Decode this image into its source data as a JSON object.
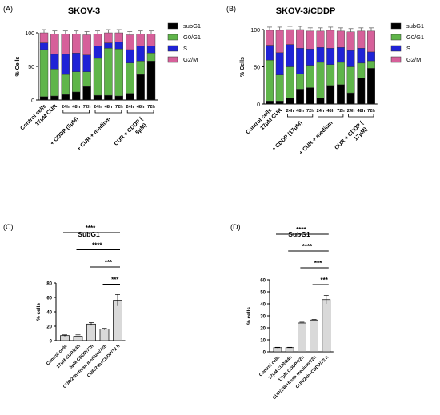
{
  "panels": {
    "A": {
      "label": "(A)"
    },
    "B": {
      "label": "(B)"
    },
    "C": {
      "label": "(C)"
    },
    "D": {
      "label": "(D)"
    }
  },
  "colors": {
    "subG1": "#000000",
    "G0G1": "#5fb54a",
    "S": "#1f22d6",
    "G2M": "#d6609a",
    "bar_gray": "#d9d9d9"
  },
  "chart_data": [
    {
      "id": "A",
      "type": "bar",
      "stacked": true,
      "title": "SKOV-3",
      "ylabel": "% Cells",
      "ylim": [
        0,
        100
      ],
      "yticks": [
        0,
        50,
        100
      ],
      "legend": [
        "subG1",
        "G0/G1",
        "S",
        "G2/M"
      ],
      "legend_position": "right",
      "time_labels": [
        "24h",
        "48h",
        "72h",
        "24h",
        "48h",
        "72h",
        "24h",
        "48h",
        "72h"
      ],
      "group_labels": [
        "Control cells",
        "17μM CUR",
        "+ CDDP (5μM)",
        "+ CUR + medium",
        "CUR + CDDP (5μM)"
      ],
      "bars": [
        {
          "subG1": 5,
          "G0G1": 70,
          "S": 10,
          "G2M": 15
        },
        {
          "subG1": 6,
          "G0G1": 40,
          "S": 22,
          "G2M": 30
        },
        {
          "subG1": 8,
          "G0G1": 30,
          "S": 30,
          "G2M": 30
        },
        {
          "subG1": 12,
          "G0G1": 30,
          "S": 28,
          "G2M": 28
        },
        {
          "subG1": 20,
          "G0G1": 22,
          "S": 25,
          "G2M": 30
        },
        {
          "subG1": 7,
          "G0G1": 55,
          "S": 18,
          "G2M": 18
        },
        {
          "subG1": 7,
          "G0G1": 70,
          "S": 8,
          "G2M": 15
        },
        {
          "subG1": 6,
          "G0G1": 70,
          "S": 10,
          "G2M": 14
        },
        {
          "subG1": 10,
          "G0G1": 45,
          "S": 20,
          "G2M": 22
        },
        {
          "subG1": 38,
          "G0G1": 20,
          "S": 22,
          "G2M": 18
        },
        {
          "subG1": 58,
          "G0G1": 12,
          "S": 10,
          "G2M": 18
        }
      ]
    },
    {
      "id": "B",
      "type": "bar",
      "stacked": true,
      "title": "SKOV-3/CDDP",
      "ylabel": "% Cells",
      "ylim": [
        0,
        100
      ],
      "yticks": [
        0,
        50,
        100
      ],
      "legend": [
        "subG1",
        "G0/G1",
        "S",
        "G2/M"
      ],
      "legend_position": "right",
      "time_labels": [
        "24h",
        "48h",
        "72h",
        "24h",
        "48h",
        "72h",
        "24h",
        "48h",
        "72h"
      ],
      "group_labels": [
        "Control cells",
        "17μM CUR",
        "+ CDDP (17μM)",
        "+ CUR + medium",
        "CUR + CDDP (17μM)"
      ],
      "bars": [
        {
          "subG1": 4,
          "G0G1": 55,
          "S": 20,
          "G2M": 20
        },
        {
          "subG1": 4,
          "G0G1": 35,
          "S": 30,
          "G2M": 30
        },
        {
          "subG1": 8,
          "G0G1": 42,
          "S": 30,
          "G2M": 20
        },
        {
          "subG1": 20,
          "G0G1": 20,
          "S": 35,
          "G2M": 25
        },
        {
          "subG1": 22,
          "G0G1": 30,
          "S": 22,
          "G2M": 24
        },
        {
          "subG1": 8,
          "G0G1": 48,
          "S": 20,
          "G2M": 22
        },
        {
          "subG1": 25,
          "G0G1": 28,
          "S": 22,
          "G2M": 24
        },
        {
          "subG1": 26,
          "G0G1": 30,
          "S": 20,
          "G2M": 22
        },
        {
          "subG1": 15,
          "G0G1": 35,
          "S": 22,
          "G2M": 25
        },
        {
          "subG1": 35,
          "G0G1": 20,
          "S": 20,
          "G2M": 23
        },
        {
          "subG1": 48,
          "G0G1": 10,
          "S": 12,
          "G2M": 28
        }
      ]
    },
    {
      "id": "C",
      "type": "bar",
      "title": "SubG1",
      "ylabel": "% cells",
      "ylim": [
        0,
        80
      ],
      "yticks": [
        0,
        20,
        40,
        60,
        80
      ],
      "categories": [
        "Control cells",
        "17μM CUR/24h",
        "5μM CDDP/72h",
        "CUR/24h+fresh medium/72h",
        "CUR/24h+CDDP/72 h"
      ],
      "values": [
        7,
        6,
        23,
        16,
        56
      ],
      "errors": [
        1,
        2,
        2,
        1,
        8
      ],
      "significance": [
        "****",
        "****",
        "***",
        "***"
      ]
    },
    {
      "id": "D",
      "type": "bar",
      "title": "SubG1",
      "ylabel": "% cells",
      "ylim": [
        0,
        60
      ],
      "yticks": [
        0,
        10,
        20,
        30,
        40,
        50,
        60
      ],
      "categories": [
        "Control cells",
        "17μM CUR/24h",
        "17μM CDDP/72h",
        "CUR/24h+fresh medium/72h",
        "CUR/24h+CDDP/72 h"
      ],
      "values": [
        3.5,
        3.5,
        24,
        26.5,
        43.5
      ],
      "errors": [
        0.3,
        0.3,
        0.7,
        0.5,
        3.5
      ],
      "significance": [
        "****",
        "****",
        "***",
        "***"
      ]
    }
  ]
}
